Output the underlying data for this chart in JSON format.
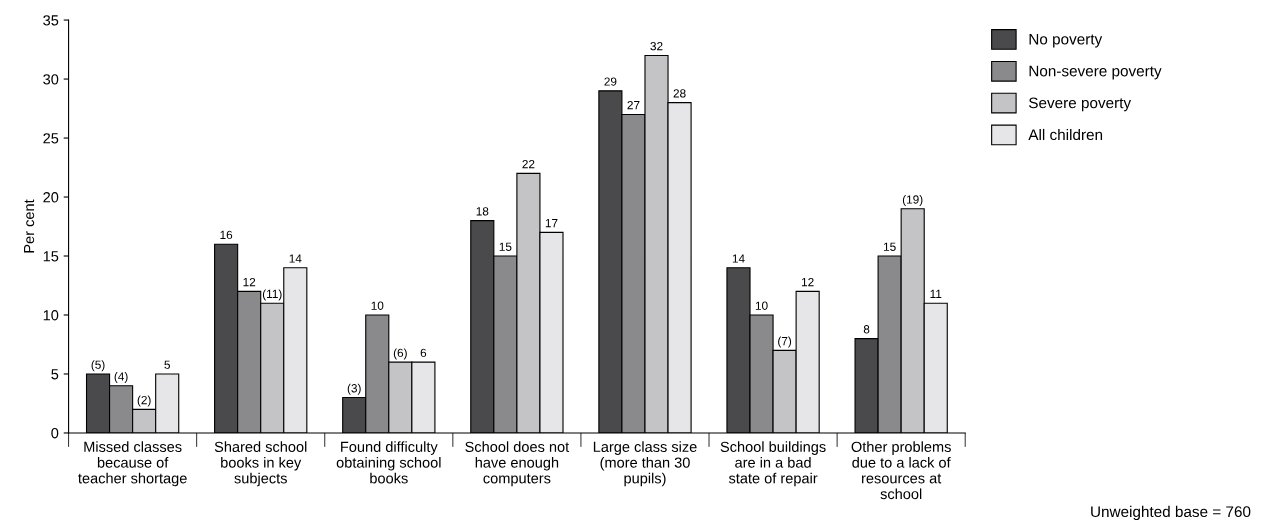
{
  "chart_data": {
    "type": "bar",
    "ylabel": "Per cent",
    "categories": [
      "Missed classes because of teacher shortage",
      "Shared school books in key subjects",
      "Found difficulty obtaining school books",
      "School does not have enough computers",
      "Large class size (more than 30 pupils)",
      "School buildings are in a bad state of repair",
      "Other problems due to a lack of resources at school"
    ],
    "series": [
      {
        "name": "No poverty",
        "color": "#4a4a4c",
        "values": [
          5,
          16,
          3,
          18,
          29,
          14,
          8
        ],
        "value_labels": [
          "(5)",
          "16",
          "(3)",
          "18",
          "29",
          "14",
          "8"
        ]
      },
      {
        "name": "Non-severe poverty",
        "color": "#8a8a8c",
        "values": [
          4,
          12,
          10,
          15,
          27,
          10,
          15
        ],
        "value_labels": [
          "(4)",
          "12",
          "10",
          "15",
          "27",
          "10",
          "15"
        ]
      },
      {
        "name": "Severe poverty",
        "color": "#c4c4c6",
        "values": [
          2,
          11,
          6,
          22,
          32,
          7,
          19
        ],
        "value_labels": [
          "(2)",
          "(11)",
          "(6)",
          "22",
          "32",
          "(7)",
          "(19)"
        ]
      },
      {
        "name": "All children",
        "color": "#e6e6e8",
        "values": [
          5,
          14,
          6,
          17,
          28,
          12,
          11
        ],
        "value_labels": [
          "5",
          "14",
          "6",
          "17",
          "28",
          "12",
          "11"
        ]
      }
    ],
    "ylim": [
      0,
      35
    ],
    "yticks": [
      0,
      5,
      10,
      15,
      20,
      25,
      30,
      35
    ],
    "grid": false,
    "legend": "top right",
    "annotations": [
      "Unweighted base = 760"
    ]
  }
}
